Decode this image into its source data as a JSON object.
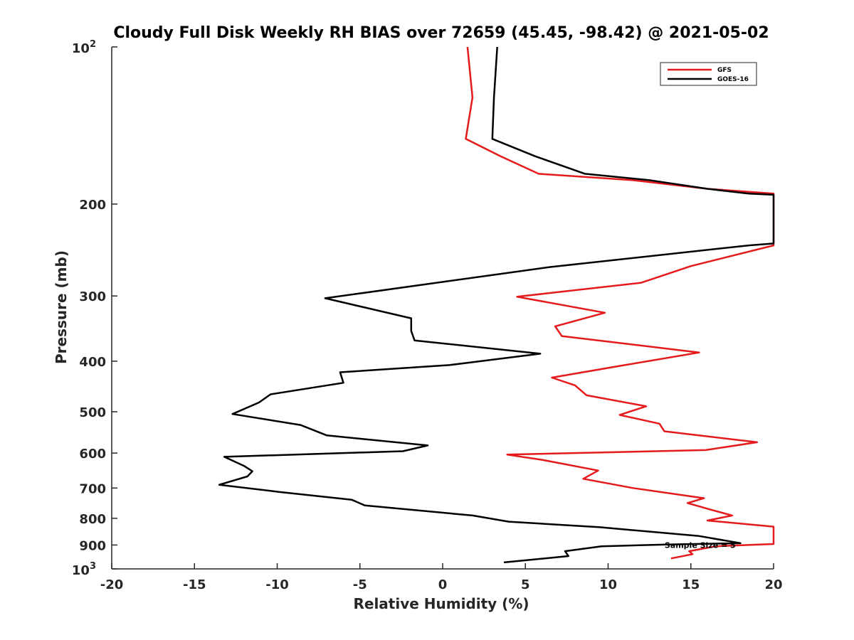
{
  "chart_data": {
    "type": "line",
    "title": "Cloudy Full Disk Weekly RH BIAS over 72659 (45.45, -98.42) @ 2021-05-02",
    "xlabel": "Relative Humidity (%)",
    "ylabel": "Pressure (mb)",
    "xlim": [
      -20,
      20
    ],
    "ylim": [
      100,
      1000
    ],
    "y_scale": "log",
    "y_reversed": true,
    "grid": false,
    "legend_position": "top-right",
    "x_ticks": [
      "-20",
      "-15",
      "-10",
      "-5",
      "0",
      "5",
      "10",
      "15",
      "20"
    ],
    "y_ticks": [
      {
        "value": 100,
        "base": "10",
        "exp": "2"
      },
      {
        "value": 200,
        "label": "200"
      },
      {
        "value": 300,
        "label": "300"
      },
      {
        "value": 400,
        "label": "400"
      },
      {
        "value": 500,
        "label": "500"
      },
      {
        "value": 600,
        "label": "600"
      },
      {
        "value": 700,
        "label": "700"
      },
      {
        "value": 800,
        "label": "800"
      },
      {
        "value": 900,
        "label": "900"
      },
      {
        "value": 1000,
        "base": "10",
        "exp": "3"
      }
    ],
    "series": [
      {
        "name": "GFS",
        "color": "#e41a1c",
        "points": [
          [
            1.5,
            100
          ],
          [
            1.8,
            125
          ],
          [
            1.4,
            150
          ],
          [
            3.5,
            162
          ],
          [
            5.8,
            175
          ],
          [
            11.5,
            180
          ],
          [
            16,
            187
          ],
          [
            20,
            191
          ],
          [
            20,
            240
          ],
          [
            15,
            263
          ],
          [
            12,
            283
          ],
          [
            4.5,
            301
          ],
          [
            9.8,
            323
          ],
          [
            6.8,
            343
          ],
          [
            7.2,
            358
          ],
          [
            15.5,
            385
          ],
          [
            11,
            407
          ],
          [
            6.6,
            430
          ],
          [
            8,
            445
          ],
          [
            8.7,
            465
          ],
          [
            12.3,
            488
          ],
          [
            10.7,
            507
          ],
          [
            13.1,
            527
          ],
          [
            13.4,
            545
          ],
          [
            19,
            572
          ],
          [
            15.9,
            592
          ],
          [
            3.9,
            604
          ],
          [
            6,
            618
          ],
          [
            9.4,
            648
          ],
          [
            8.5,
            672
          ],
          [
            11.5,
            700
          ],
          [
            15.8,
            732
          ],
          [
            14.8,
            748
          ],
          [
            16.2,
            770
          ],
          [
            17.5,
            790
          ],
          [
            16,
            808
          ],
          [
            20,
            830
          ],
          [
            20,
            896
          ],
          [
            16.5,
            905
          ],
          [
            14.9,
            925
          ],
          [
            15.1,
            937
          ],
          [
            13.8,
            955
          ]
        ]
      },
      {
        "name": "GOES-16",
        "color": "#000000",
        "points": [
          [
            3.3,
            100
          ],
          [
            3.1,
            125
          ],
          [
            3.0,
            150
          ],
          [
            5.6,
            162
          ],
          [
            8.6,
            175
          ],
          [
            12.5,
            180
          ],
          [
            16,
            187
          ],
          [
            18.5,
            191
          ],
          [
            20,
            192
          ],
          [
            20,
            238
          ],
          [
            18.5,
            240
          ],
          [
            6.5,
            264
          ],
          [
            -7.1,
            303
          ],
          [
            -1.9,
            331
          ],
          [
            -1.9,
            350
          ],
          [
            -1.7,
            365
          ],
          [
            5.9,
            387
          ],
          [
            0.4,
            407
          ],
          [
            -6.2,
            420
          ],
          [
            -6,
            440
          ],
          [
            -10.4,
            463
          ],
          [
            -11.1,
            480
          ],
          [
            -12.7,
            505
          ],
          [
            -8.6,
            530
          ],
          [
            -7,
            555
          ],
          [
            -0.9,
            580
          ],
          [
            -2.4,
            595
          ],
          [
            -13.2,
            610
          ],
          [
            -12,
            635
          ],
          [
            -11.5,
            650
          ],
          [
            -11.8,
            665
          ],
          [
            -13.5,
            690
          ],
          [
            -9.9,
            712
          ],
          [
            -5.5,
            737
          ],
          [
            -4.7,
            756
          ],
          [
            1.8,
            790
          ],
          [
            4,
            812
          ],
          [
            9.5,
            832
          ],
          [
            15.5,
            865
          ],
          [
            18,
            893
          ],
          [
            13.5,
            898
          ],
          [
            9.6,
            905
          ],
          [
            7.4,
            925
          ],
          [
            7.6,
            945
          ],
          [
            3.7,
            972
          ]
        ]
      }
    ],
    "annotations": [
      {
        "text": "Sample Size = 5",
        "x": 13.5,
        "y": 900
      }
    ]
  }
}
